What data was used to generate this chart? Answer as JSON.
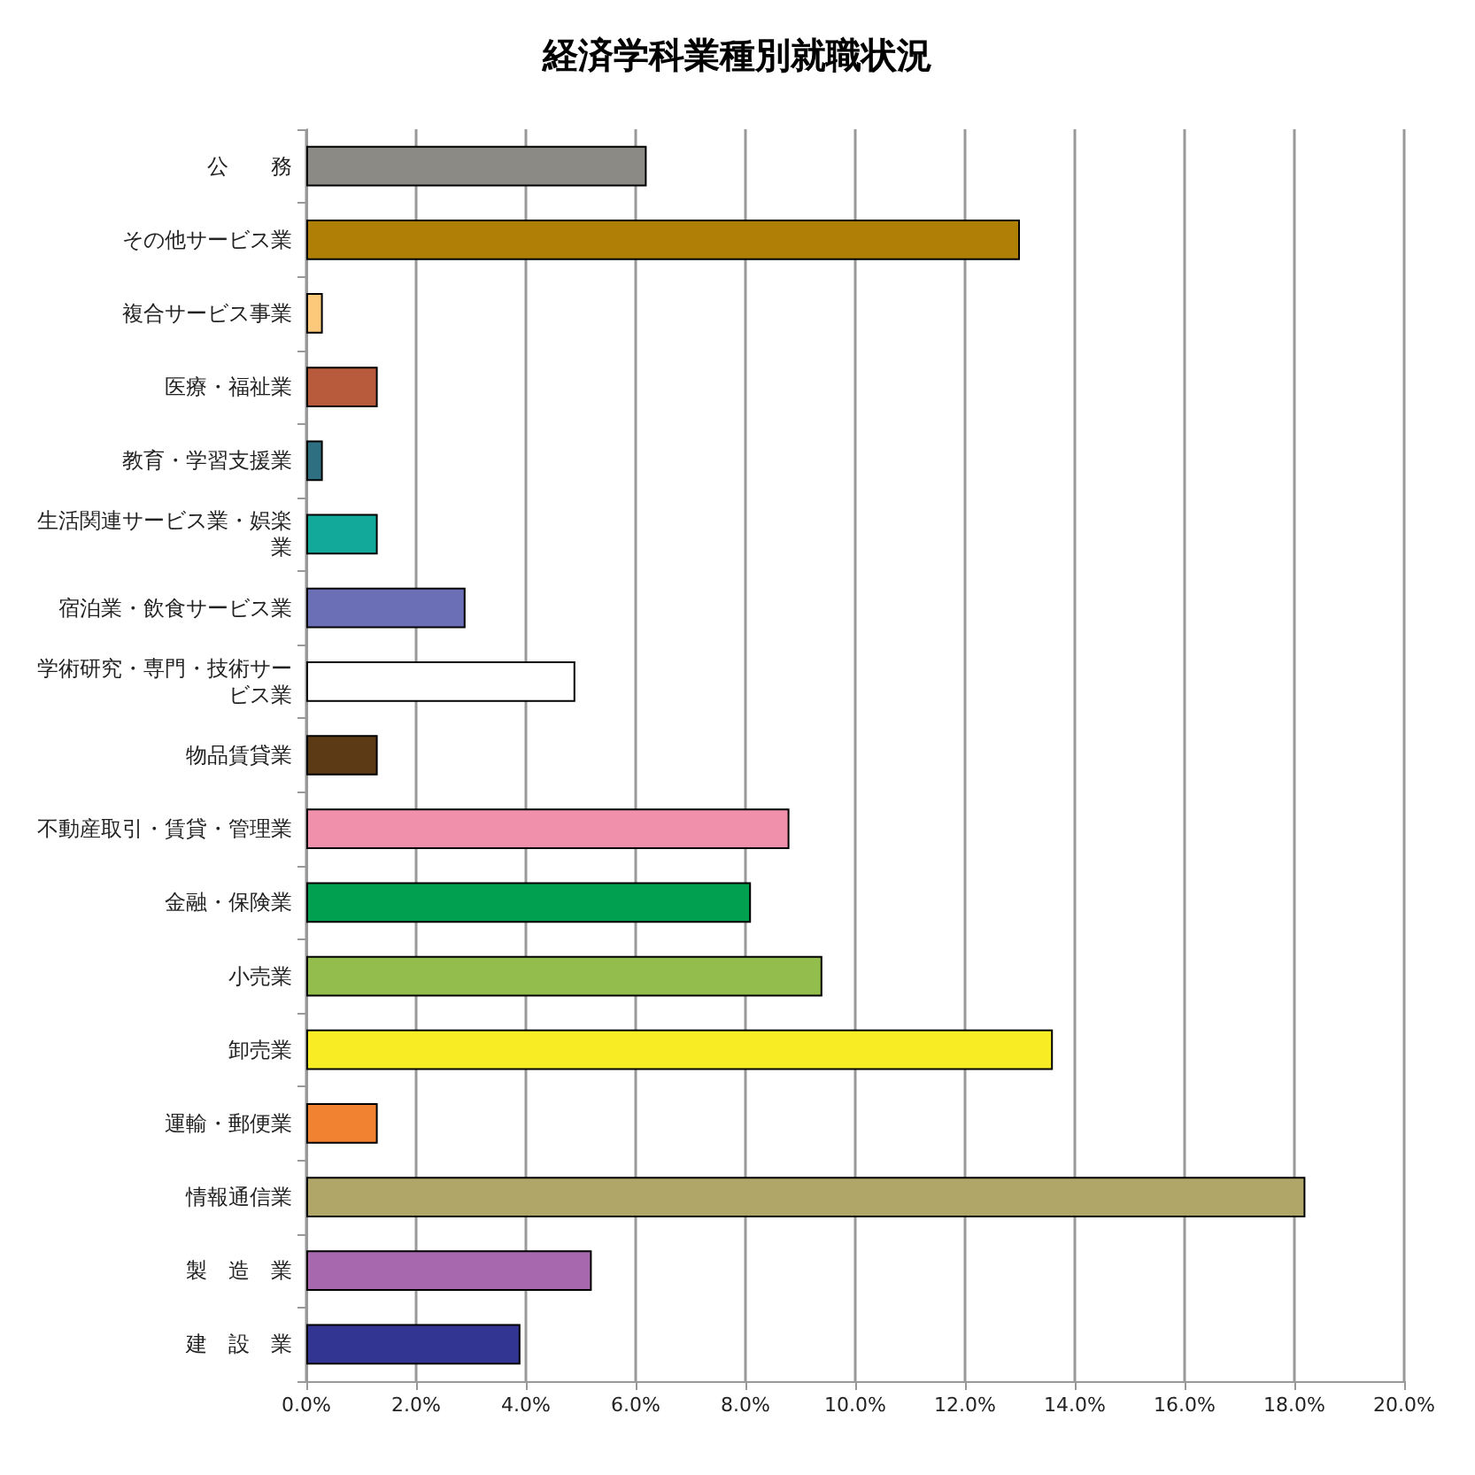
{
  "chart_data": {
    "type": "bar",
    "orientation": "horizontal",
    "title": "経済学科業種別就職状況",
    "categories": [
      "公　　務",
      "その他サービス業",
      "複合サービス事業",
      "医療・福祉業",
      "教育・学習支援業",
      "生活関連サービス業・娯楽業",
      "宿泊業・飲食サービス業",
      "学術研究・専門・技術サービス業",
      "物品賃貸業",
      "不動産取引・賃貸・管理業",
      "金融・保険業",
      "小売業",
      "卸売業",
      "運輸・郵便業",
      "情報通信業",
      "製　造　業",
      "建　設　業"
    ],
    "values": [
      6.2,
      13.0,
      0.3,
      1.3,
      0.3,
      1.3,
      2.9,
      4.9,
      1.3,
      8.8,
      8.1,
      9.4,
      13.6,
      1.3,
      18.2,
      5.2,
      3.9
    ],
    "colors": [
      "#8c8a85",
      "#b07f05",
      "#fcc87a",
      "#b85a3c",
      "#2e7082",
      "#12a89a",
      "#6b6fb5",
      "#ffffff",
      "#5c3a16",
      "#f190aa",
      "#00a050",
      "#93bd4c",
      "#f8ec25",
      "#f08232",
      "#b0a668",
      "#a868ad",
      "#323592"
    ],
    "xlim": [
      0,
      20
    ],
    "xticks": [
      {
        "value": 0,
        "label": "0.0%"
      },
      {
        "value": 2,
        "label": "2.0%"
      },
      {
        "value": 4,
        "label": "4.0%"
      },
      {
        "value": 6,
        "label": "6.0%"
      },
      {
        "value": 8,
        "label": "8.0%"
      },
      {
        "value": 10,
        "label": "10.0%"
      },
      {
        "value": 12,
        "label": "12.0%"
      },
      {
        "value": 14,
        "label": "14.0%"
      },
      {
        "value": 16,
        "label": "16.0%"
      },
      {
        "value": 18,
        "label": "18.0%"
      },
      {
        "value": 20,
        "label": "20.0%"
      }
    ],
    "grid": "x"
  }
}
